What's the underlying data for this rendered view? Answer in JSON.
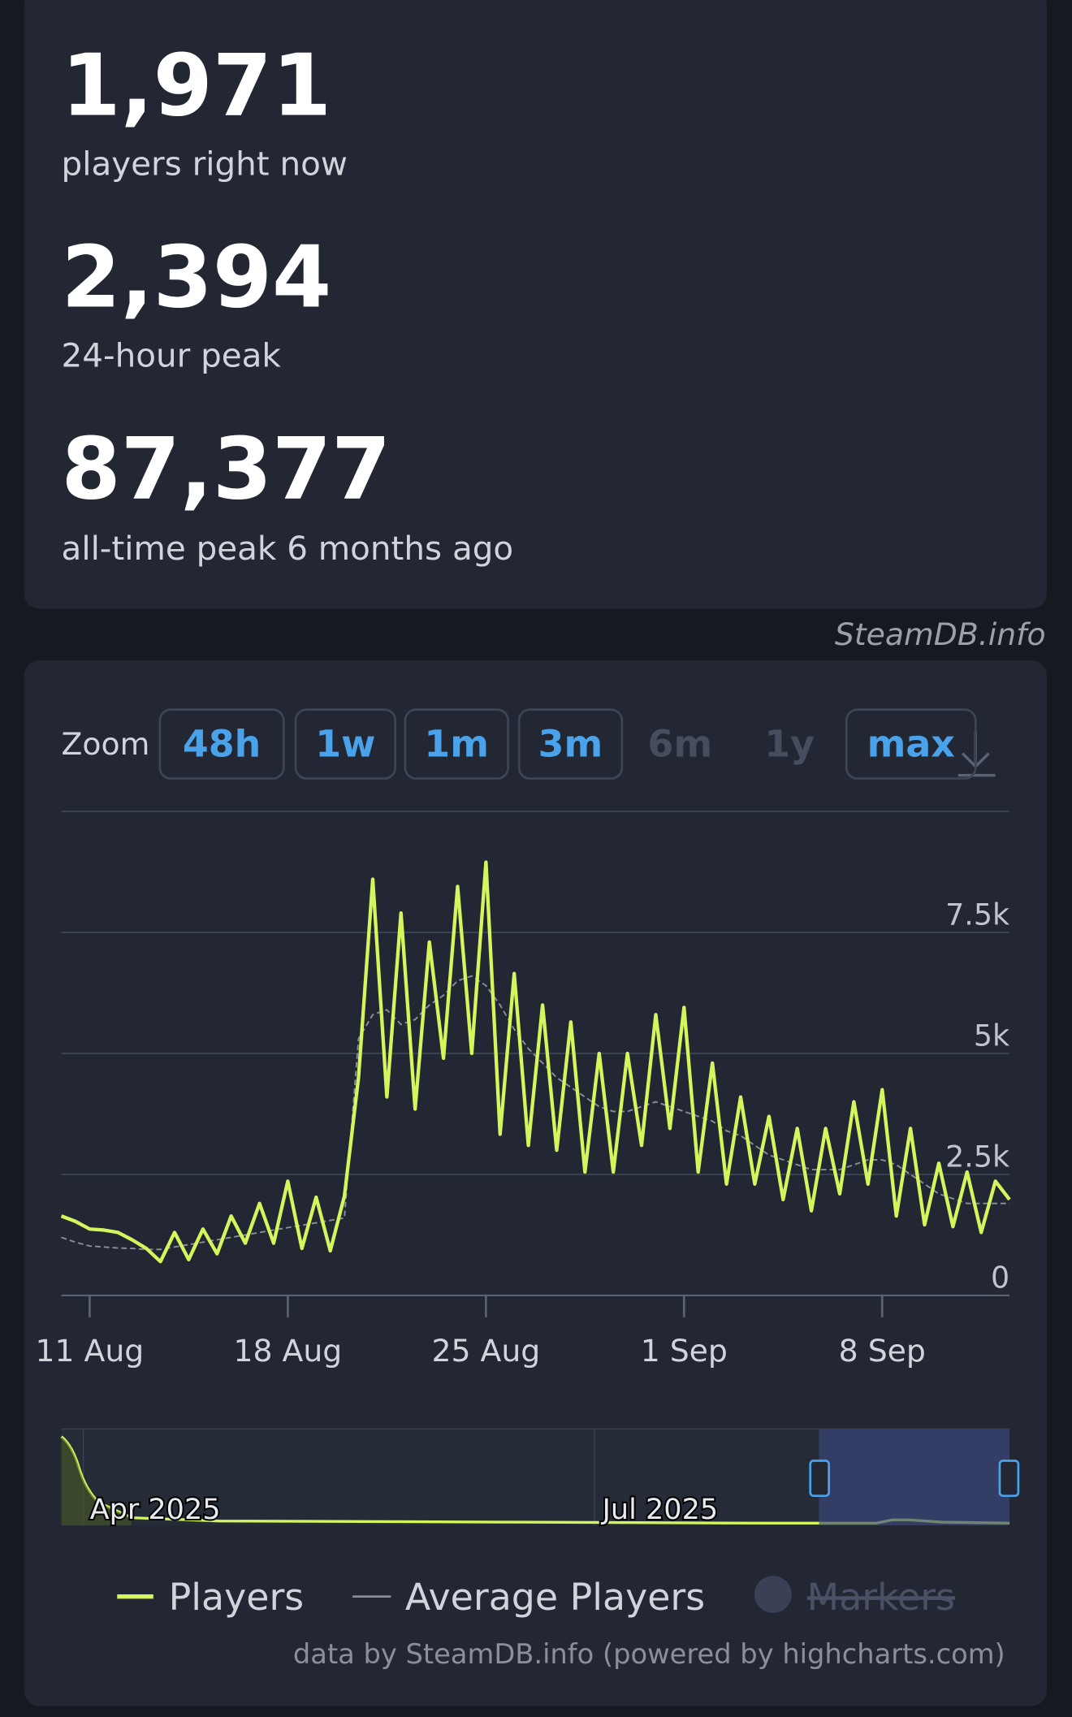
{
  "stats": [
    {
      "value": "1,971",
      "label": "players right now"
    },
    {
      "value": "2,394",
      "label": "24-hour peak"
    },
    {
      "value": "87,377",
      "label": "all-time peak 6 months ago"
    }
  ],
  "watermark": "SteamDB.info",
  "zoom": {
    "label": "Zoom",
    "buttons": [
      {
        "label": "48h",
        "enabled": true
      },
      {
        "label": "1w",
        "enabled": true
      },
      {
        "label": "1m",
        "enabled": true
      },
      {
        "label": "3m",
        "enabled": true
      },
      {
        "label": "6m",
        "enabled": false
      },
      {
        "label": "1y",
        "enabled": false
      },
      {
        "label": "max",
        "enabled": true
      }
    ]
  },
  "chart_data": {
    "type": "line",
    "categories": [
      null,
      null,
      "11 Aug",
      null,
      null,
      null,
      null,
      null,
      null,
      null,
      null,
      null,
      null,
      null,
      null,
      null,
      "18 Aug",
      null,
      null,
      null,
      null,
      null,
      null,
      null,
      null,
      null,
      null,
      null,
      null,
      null,
      "25 Aug",
      null,
      null,
      null,
      null,
      null,
      null,
      null,
      null,
      null,
      null,
      null,
      null,
      null,
      "1 Sep",
      null,
      null,
      null,
      null,
      null,
      null,
      null,
      null,
      null,
      null,
      null,
      null,
      null,
      "8 Sep",
      null,
      null,
      null,
      null,
      null,
      null,
      null,
      null,
      null
    ],
    "series": [
      {
        "name": "Players",
        "color": "#d4f55b",
        "values": [
          1640,
          1530,
          1370,
          1350,
          1300,
          1150,
          970,
          700,
          1300,
          740,
          1370,
          860,
          1640,
          1080,
          1900,
          1080,
          2360,
          970,
          2030,
          920,
          2050,
          4500,
          8600,
          4100,
          7900,
          3850,
          7300,
          4900,
          8450,
          5000,
          8950,
          3330,
          6650,
          3100,
          6000,
          3000,
          5650,
          2550,
          5000,
          2550,
          5000,
          3100,
          5800,
          3450,
          5950,
          2550,
          4800,
          2300,
          4100,
          2300,
          3700,
          1980,
          3450,
          1750,
          3450,
          2100,
          4000,
          2300,
          4250,
          1640,
          3450,
          1460,
          2730,
          1420,
          2550,
          1300,
          2360,
          1980
        ]
      },
      {
        "name": "Average Players",
        "color": "#8a8f98",
        "values": [
          1200,
          1100,
          1020,
          1000,
          980,
          970,
          950,
          950,
          1000,
          1050,
          1100,
          1150,
          1200,
          1250,
          1300,
          1350,
          1400,
          1450,
          1500,
          1550,
          1600,
          5300,
          5800,
          5900,
          5600,
          5700,
          6000,
          6200,
          6500,
          6600,
          6400,
          6000,
          5500,
          5100,
          4800,
          4500,
          4300,
          4100,
          3900,
          3800,
          3800,
          3900,
          4000,
          3900,
          3800,
          3700,
          3600,
          3400,
          3300,
          3100,
          2900,
          2800,
          2700,
          2600,
          2600,
          2600,
          2700,
          2800,
          2800,
          2700,
          2500,
          2300,
          2100,
          2000,
          1900,
          1900,
          1900,
          1900
        ]
      }
    ],
    "ylim": [
      0,
      10000
    ],
    "yticks": [
      0,
      {
        "value": 2500,
        "label": "2.5k"
      },
      {
        "value": 5000,
        "label": "5k"
      },
      {
        "value": 7500,
        "label": "7.5k"
      }
    ],
    "grid": true
  },
  "navigator": {
    "labels": [
      "Apr 2025",
      "Jul 2025"
    ]
  },
  "legend_disabled": "Markers",
  "credit": "data by SteamDB.info (powered by highcharts.com)"
}
